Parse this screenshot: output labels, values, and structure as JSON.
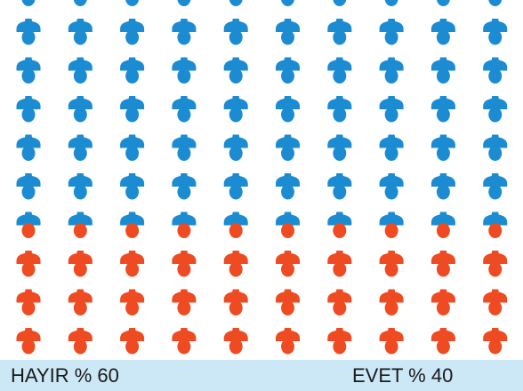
{
  "chart_data": {
    "type": "pictograph",
    "values": [
      60,
      40
    ],
    "value_labels": [
      "HAYIR % 60",
      "EVET % 40"
    ],
    "colors": [
      "#1b8bd2",
      "#ee4b22"
    ]
  }
}
